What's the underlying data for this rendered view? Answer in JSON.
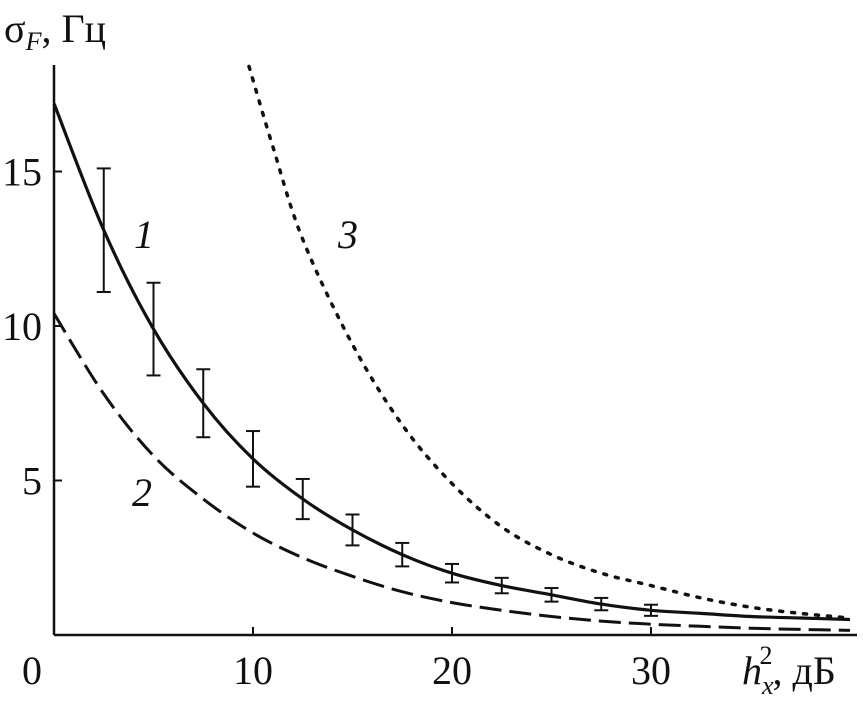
{
  "chart_data": {
    "type": "line",
    "title": "",
    "ylabel_symbol": "σ",
    "ylabel_sub": "F",
    "ylabel_unit": ", Гц",
    "xlabel_symbol": "h",
    "xlabel_sub": "x",
    "xlabel_sup": "2",
    "xlabel_unit": ", дБ",
    "xlim": [
      0,
      40
    ],
    "ylim": [
      0,
      18.5
    ],
    "x_ticks": [
      0,
      10,
      20,
      30
    ],
    "x_tick_labels": [
      "0",
      "10",
      "20",
      "30"
    ],
    "y_ticks": [
      5,
      10,
      15
    ],
    "y_tick_labels": [
      "5",
      "10",
      "15"
    ],
    "grid": false,
    "series": [
      {
        "name": "1",
        "style": "solid",
        "color": "#111111",
        "x": [
          0,
          2.5,
          5,
          7.5,
          10,
          12.5,
          15,
          17.5,
          20,
          22.5,
          25,
          27.5,
          30,
          32.5,
          35,
          37.5,
          40
        ],
        "y": [
          17.2,
          13.1,
          9.9,
          7.5,
          5.7,
          4.4,
          3.4,
          2.6,
          2.0,
          1.6,
          1.3,
          1.0,
          0.8,
          0.7,
          0.6,
          0.55,
          0.5
        ],
        "errorbar_x": [
          2.5,
          5,
          7.5,
          10,
          12.5,
          15,
          17.5,
          20,
          22.5,
          25,
          27.5,
          30
        ],
        "errorbar_y": [
          13.1,
          9.9,
          7.5,
          5.7,
          4.4,
          3.4,
          2.6,
          2.0,
          1.6,
          1.3,
          1.0,
          0.8
        ],
        "errorbar_err": [
          2.0,
          1.5,
          1.1,
          0.9,
          0.65,
          0.5,
          0.38,
          0.3,
          0.25,
          0.22,
          0.2,
          0.18
        ]
      },
      {
        "name": "2",
        "style": "dashed",
        "color": "#111111",
        "x": [
          0,
          2.5,
          5,
          7.5,
          10,
          12.5,
          15,
          17.5,
          20,
          22.5,
          25,
          27.5,
          30,
          32.5,
          35,
          37.5,
          40
        ],
        "y": [
          10.4,
          7.8,
          5.8,
          4.4,
          3.3,
          2.5,
          1.9,
          1.4,
          1.05,
          0.8,
          0.6,
          0.45,
          0.35,
          0.28,
          0.22,
          0.18,
          0.15
        ]
      },
      {
        "name": "3",
        "style": "dotted",
        "color": "#111111",
        "x": [
          9.8,
          11,
          12.5,
          15,
          17.5,
          20,
          22.5,
          25,
          27.5,
          30,
          32.5,
          35,
          37.5,
          40
        ],
        "y": [
          18.4,
          15.8,
          12.8,
          9.4,
          6.8,
          4.9,
          3.5,
          2.6,
          2.0,
          1.6,
          1.2,
          0.9,
          0.7,
          0.55
        ]
      }
    ]
  }
}
